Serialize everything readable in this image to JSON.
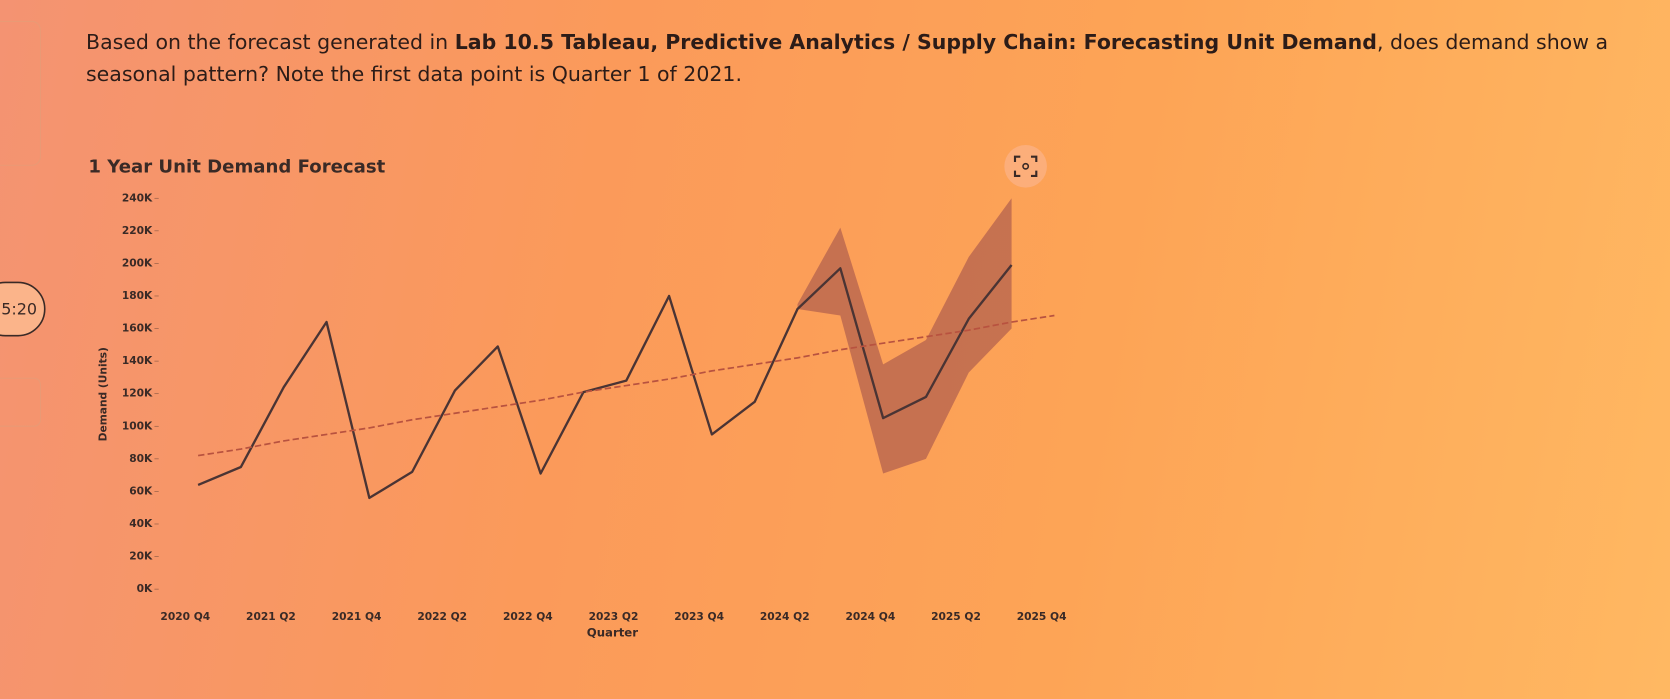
{
  "question": {
    "before": "Based on the forecast generated in ",
    "bold": "Lab 10.5 Tableau, Predictive Analytics / Supply Chain: Forecasting Unit Demand",
    "after": ", does demand show a seasonal pattern? Note the first data point is Quarter 1 of 2021."
  },
  "timer": "5:20",
  "chart_data": {
    "type": "line",
    "title": "1 Year Unit Demand Forecast",
    "x_label": "Quarter",
    "y_label": "Demand (Units)",
    "categories": [
      "2020 Q4",
      null,
      "2021 Q2",
      null,
      "2021 Q4",
      null,
      "2022 Q2",
      null,
      "2022 Q4",
      null,
      "2023 Q2",
      null,
      "2023 Q4",
      null,
      "2024 Q2",
      null,
      "2024 Q4",
      null,
      "2025 Q2",
      null,
      "2025 Q4"
    ],
    "series": [
      {
        "color": "#4a3434",
        "style": "solid",
        "values": [
          64000,
          75000,
          124000,
          164000,
          56000,
          72000,
          122000,
          149000,
          71000,
          121000,
          128000,
          180000,
          95000,
          115000,
          172000,
          197000,
          105000,
          118000,
          166000,
          199000,
          null
        ]
      },
      {
        "color": "#b8523f",
        "style": "dashed",
        "values": [
          82000,
          86000,
          91000,
          95000,
          99000,
          104000,
          108000,
          112000,
          116000,
          121000,
          125000,
          129000,
          134000,
          138000,
          142000,
          147000,
          151000,
          155000,
          159000,
          164000,
          168000
        ]
      }
    ],
    "band": {
      "color": "#b4614e",
      "upper": [
        null,
        null,
        null,
        null,
        null,
        null,
        null,
        null,
        null,
        null,
        null,
        null,
        null,
        null,
        175000,
        222000,
        138000,
        153000,
        204000,
        240000,
        null
      ],
      "lower": [
        null,
        null,
        null,
        null,
        null,
        null,
        null,
        null,
        null,
        null,
        null,
        null,
        null,
        null,
        172000,
        168000,
        71000,
        80000,
        133000,
        160000,
        null
      ]
    },
    "ylim": [
      0,
      240000
    ],
    "yticks": [
      {
        "value": 0,
        "label": "0K"
      },
      {
        "value": 20000,
        "label": "20K"
      },
      {
        "value": 40000,
        "label": "40K"
      },
      {
        "value": 60000,
        "label": "60K"
      },
      {
        "value": 80000,
        "label": "80K"
      },
      {
        "value": 100000,
        "label": "100K"
      },
      {
        "value": 120000,
        "label": "120K"
      },
      {
        "value": 140000,
        "label": "140K"
      },
      {
        "value": 160000,
        "label": "160K"
      },
      {
        "value": 180000,
        "label": "180K"
      },
      {
        "value": 200000,
        "label": "200K"
      },
      {
        "value": 220000,
        "label": "220K"
      },
      {
        "value": 240000,
        "label": "240K"
      }
    ],
    "grid": false
  }
}
